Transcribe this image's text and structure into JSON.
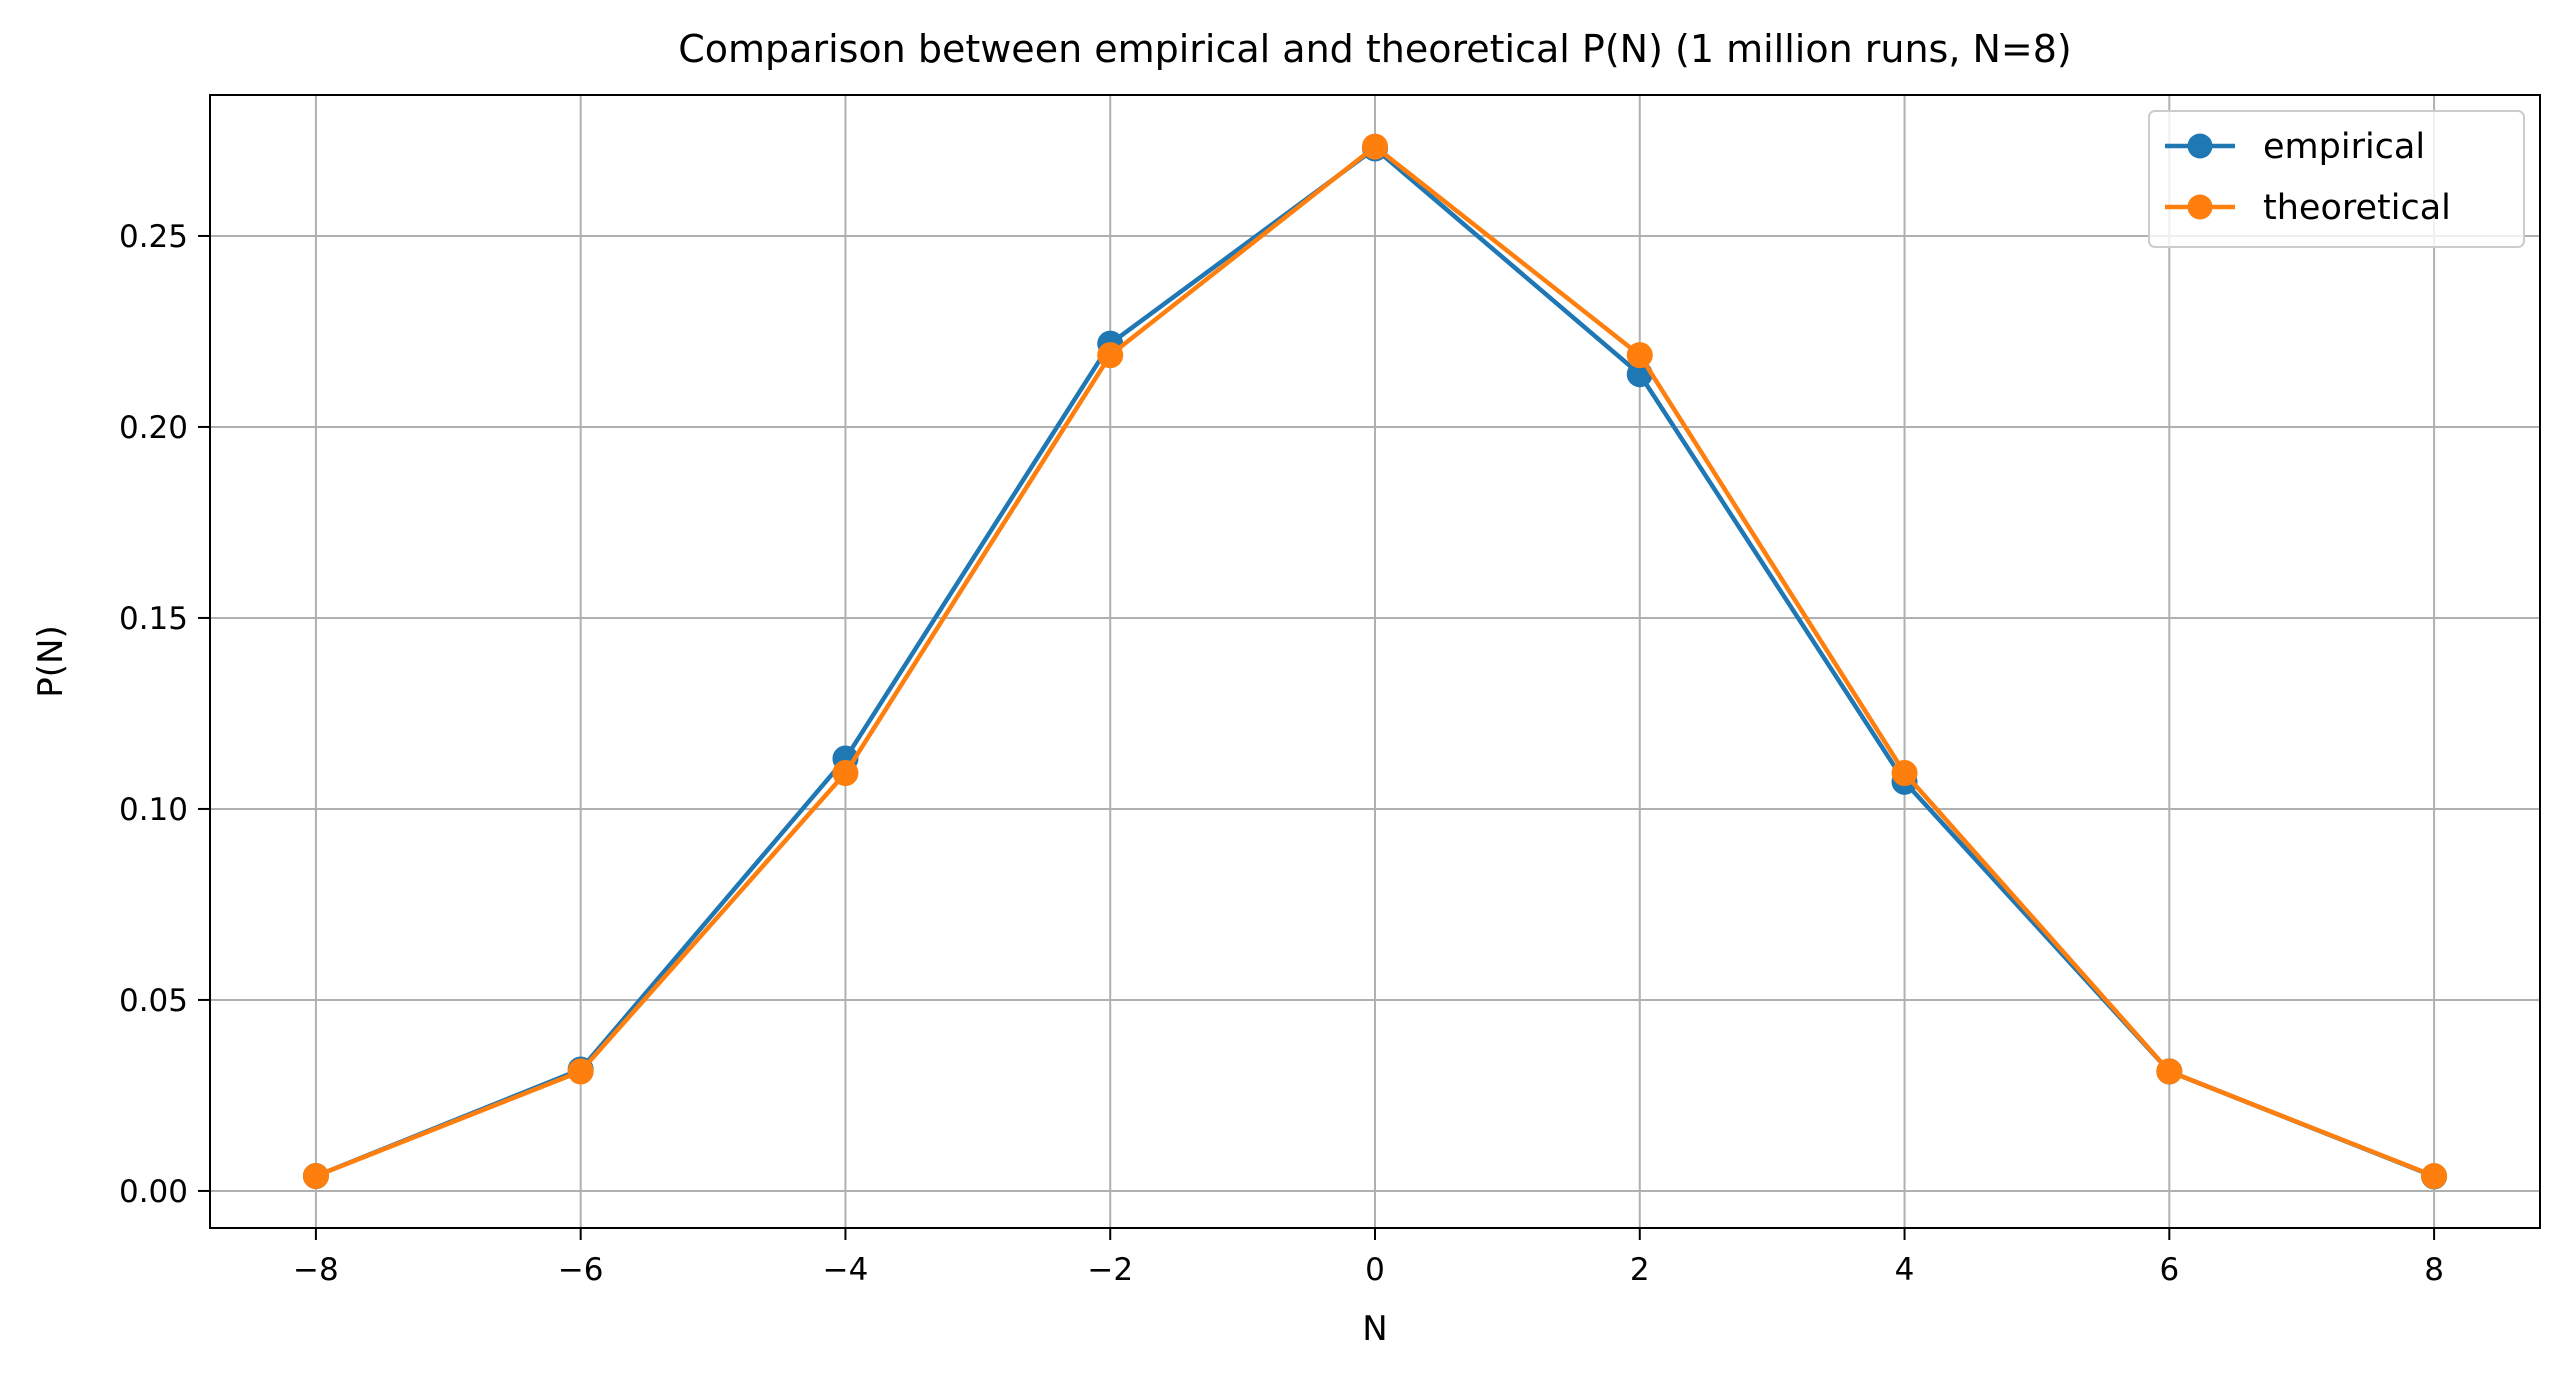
{
  "chart_data": {
    "type": "line",
    "title": "Comparison between empirical and theoretical P(N) (1 million runs, N=8)",
    "xlabel": "N",
    "ylabel": "P(N)",
    "x": [
      -8,
      -6,
      -4,
      -2,
      0,
      2,
      4,
      6,
      8
    ],
    "x_ticks": [
      -8,
      -6,
      -4,
      -2,
      0,
      2,
      4,
      6,
      8
    ],
    "x_tick_labels": [
      "−8",
      "−6",
      "−4",
      "−2",
      "0",
      "2",
      "4",
      "6",
      "8"
    ],
    "y_ticks": [
      0.0,
      0.05,
      0.1,
      0.15,
      0.2,
      0.25
    ],
    "y_tick_labels": [
      "0.00",
      "0.05",
      "0.10",
      "0.15",
      "0.20",
      "0.25"
    ],
    "xlim": [
      -8.8,
      8.8
    ],
    "ylim": [
      -0.0097,
      0.2869
    ],
    "grid": true,
    "legend_position": "top-right",
    "series": [
      {
        "name": "empirical",
        "color": "#1f77b4",
        "marker": "circle",
        "values": [
          0.0039,
          0.0318,
          0.1132,
          0.2218,
          0.2729,
          0.2138,
          0.1071,
          0.0313,
          0.0038
        ]
      },
      {
        "name": "theoretical",
        "color": "#ff7f0e",
        "marker": "circle",
        "values": [
          0.0039,
          0.0313,
          0.1094,
          0.2188,
          0.2734,
          0.2188,
          0.1094,
          0.0313,
          0.0039
        ]
      }
    ]
  }
}
